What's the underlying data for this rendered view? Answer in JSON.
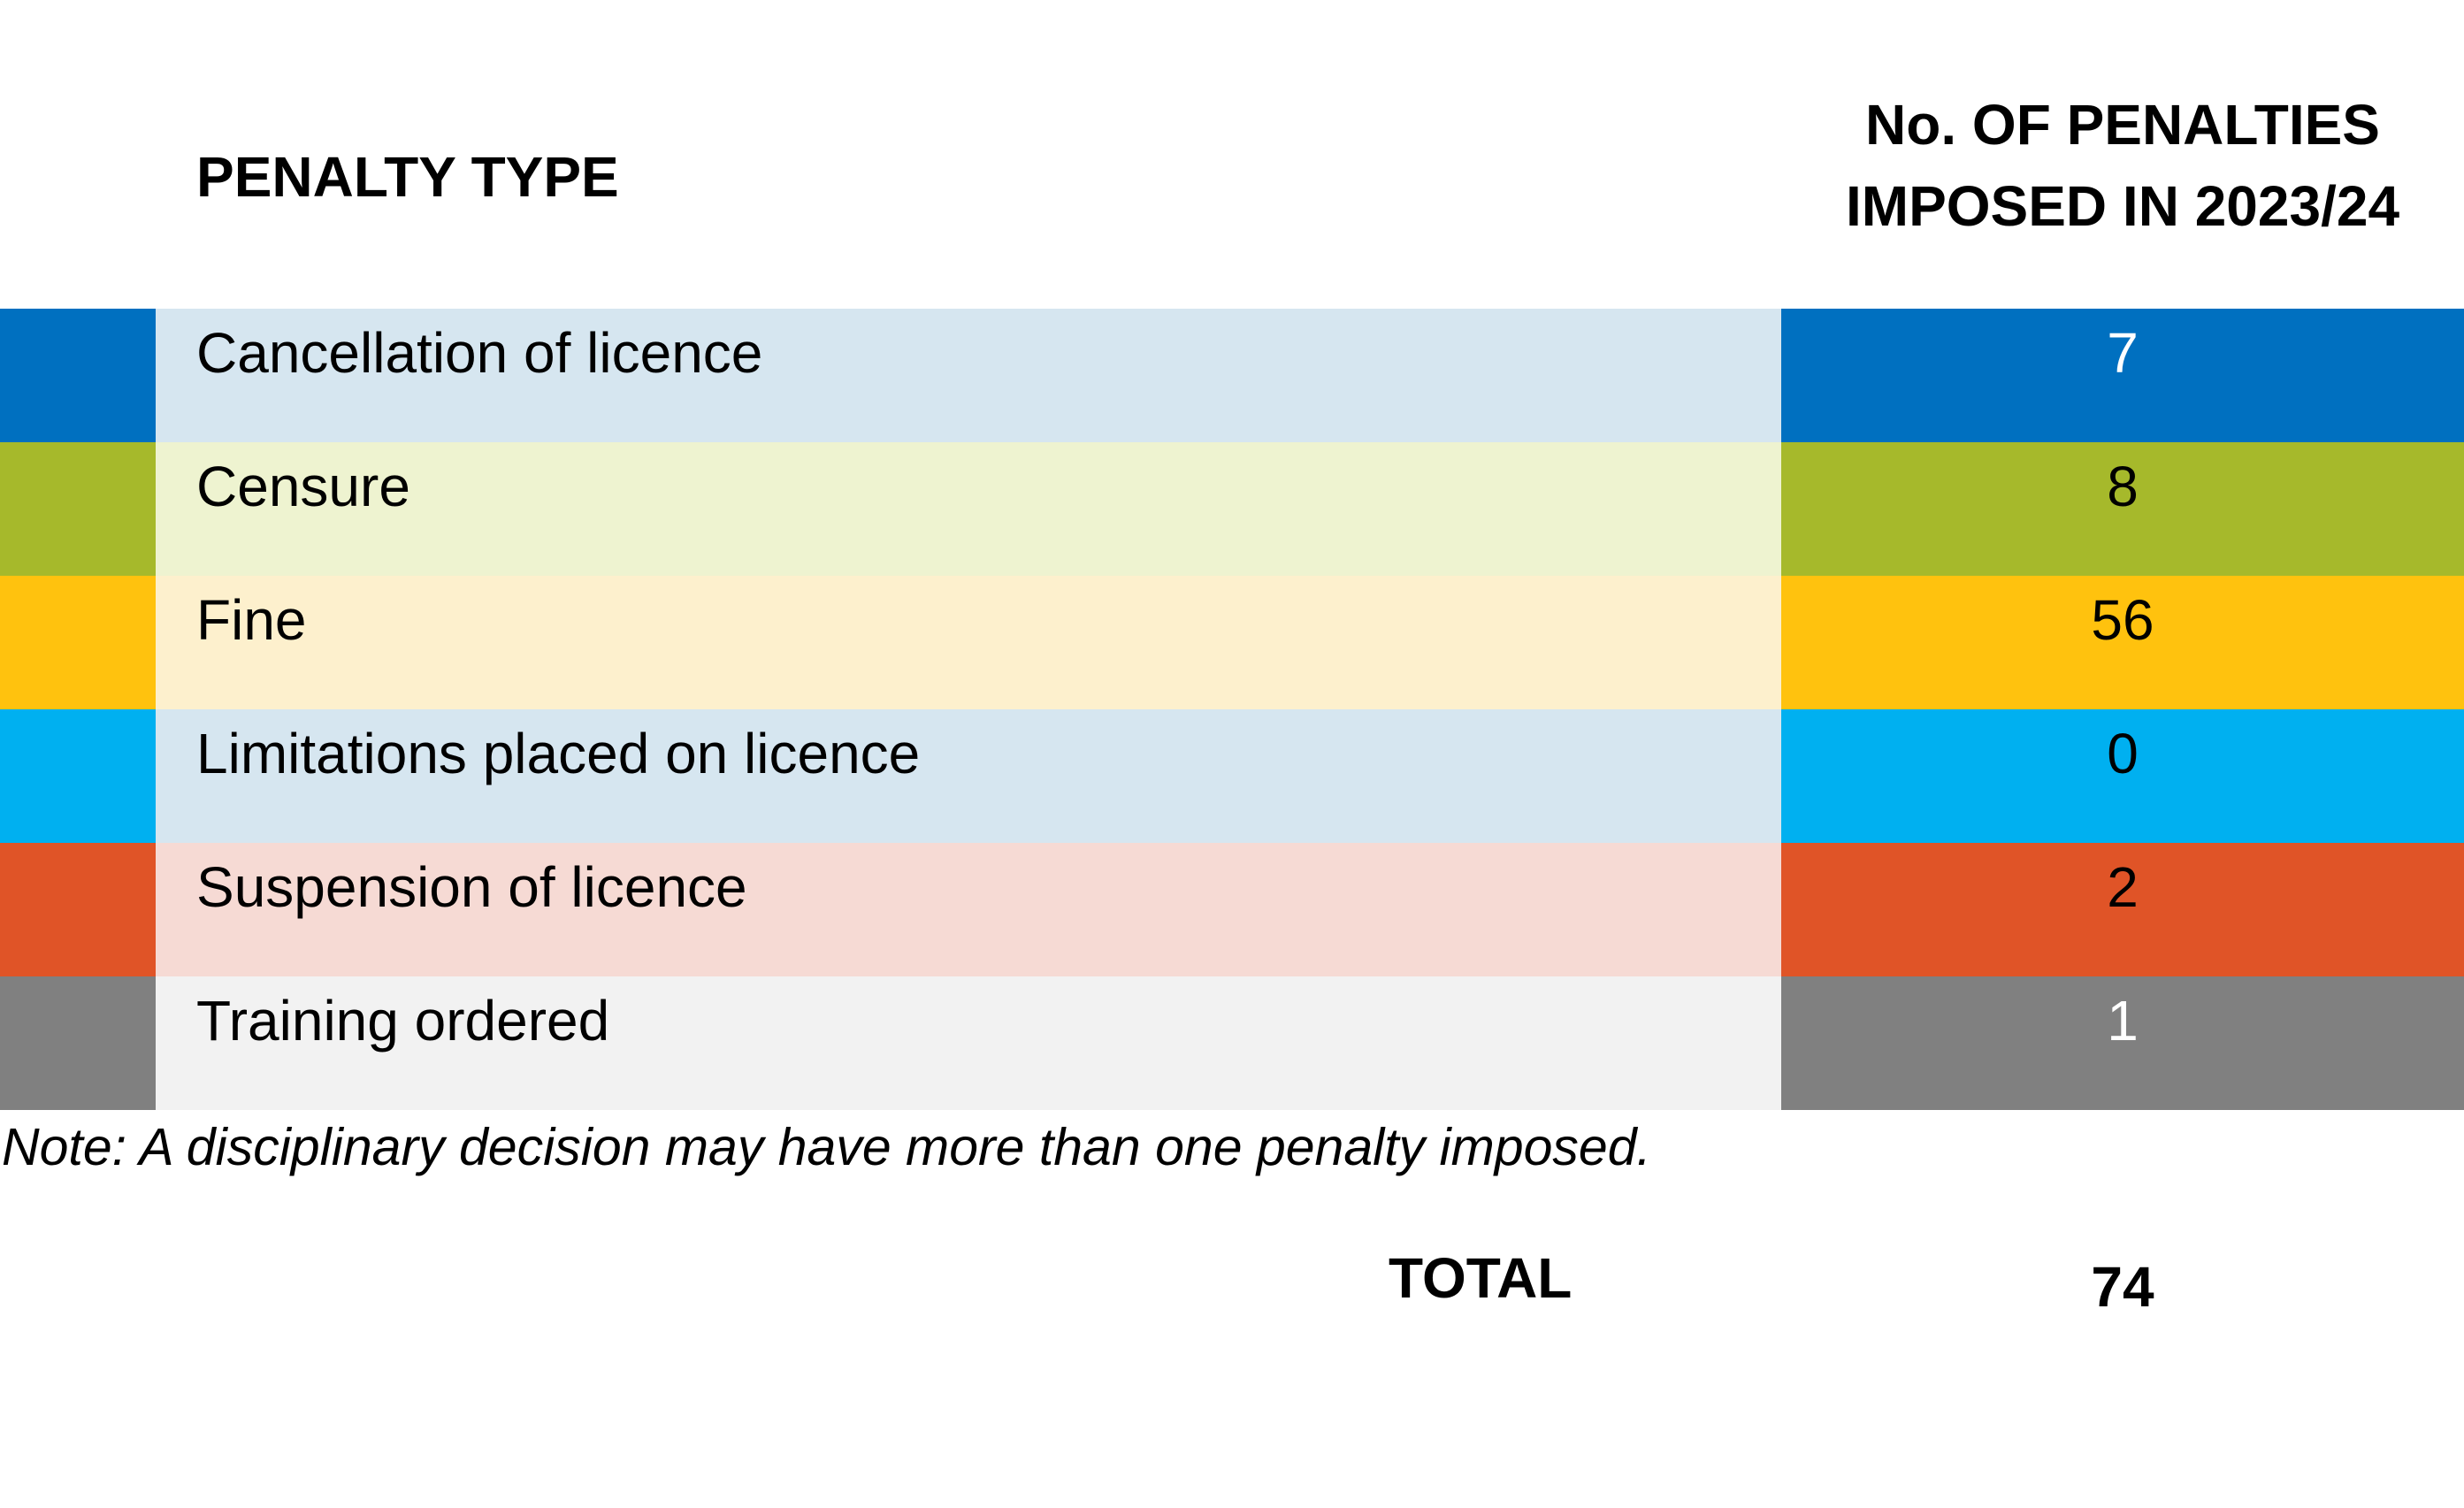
{
  "header": {
    "penalty_type": "PENALTY TYPE",
    "count_line1": "No. OF PENALTIES",
    "count_line2": "IMPOSED IN 2023/24"
  },
  "chart_data": {
    "type": "table",
    "columns": [
      "PENALTY TYPE",
      "No. OF PENALTIES IMPOSED IN 2023/24"
    ],
    "rows": [
      {
        "label": "Cancellation of licence",
        "value": "7",
        "color": "#0070C0",
        "tint": "#D6E6F0",
        "value_text_color": "#FFFFFF"
      },
      {
        "label": "Censure",
        "value": "8",
        "color": "#A6B92B",
        "tint": "#EEF3D0",
        "value_text_color": "#000000"
      },
      {
        "label": "Fine",
        "value": "56",
        "color": "#FFC20E",
        "tint": "#FDF0CD",
        "value_text_color": "#000000"
      },
      {
        "label": "Limitations placed on licence",
        "value": "0",
        "color": "#00B0F0",
        "tint": "#D6E6F0",
        "value_text_color": "#000000"
      },
      {
        "label": "Suspension of licence",
        "value": "2",
        "color": "#E05427",
        "tint": "#F6DAD4",
        "value_text_color": "#000000"
      },
      {
        "label": "Training ordered",
        "value": "1",
        "color": "#808080",
        "tint": "#F2F2F2",
        "value_text_color": "#FFFFFF"
      }
    ]
  },
  "note": "Note: A disciplinary decision may have more than one penalty imposed.",
  "total": {
    "label": "TOTAL",
    "value": "74"
  }
}
